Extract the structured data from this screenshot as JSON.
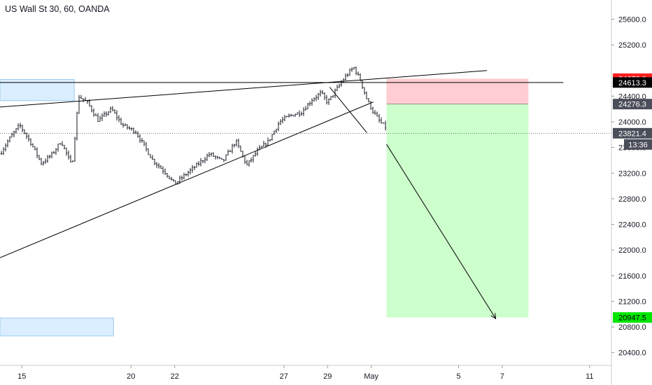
{
  "chart_title": "US Wall St 30, 60, OANDA",
  "colors": {
    "candle": "#131722",
    "zone_fill": "#dbeeff",
    "zone_stroke": "#9ccaf0",
    "stop_fill": "#ffcdd2",
    "target_fill": "#ccffcc",
    "badge_red": "#ff1f1f",
    "badge_black": "#000000",
    "badge_gray": "#4a4e59",
    "badge_green": "#00e600"
  },
  "chart_data": {
    "type": "candlestick",
    "title": "US Wall St 30, 60, OANDA",
    "y_ticks": [
      20400,
      20800,
      21200,
      21600,
      22000,
      22400,
      22800,
      23200,
      23600,
      24000,
      24400,
      25200,
      25600
    ],
    "y_tick_labels": [
      "20400.0",
      "20800.0",
      "21200.0",
      "21600.0",
      "22000.0",
      "22400.0",
      "22800.0",
      "23200.0",
      "23600.0",
      "24000.0",
      "24400.0",
      "25200.0",
      "25600.0"
    ],
    "ylim": [
      20200,
      25900
    ],
    "x_ticks": [
      {
        "label": "15",
        "day": 15
      },
      {
        "label": "20",
        "day": 20
      },
      {
        "label": "22",
        "day": 22
      },
      {
        "label": "27",
        "day": 27
      },
      {
        "label": "29",
        "day": 29
      },
      {
        "label": "May",
        "day": 31
      },
      {
        "label": "5",
        "day": 35
      },
      {
        "label": "7",
        "day": 37
      },
      {
        "label": "11",
        "day": 41
      }
    ],
    "xlim": [
      14.0,
      42.0
    ],
    "price_path": [
      {
        "day": 14.0,
        "price": 23500
      },
      {
        "day": 14.4,
        "price": 23720
      },
      {
        "day": 14.9,
        "price": 23950
      },
      {
        "day": 15.4,
        "price": 23680
      },
      {
        "day": 15.9,
        "price": 23350
      },
      {
        "day": 16.4,
        "price": 23500
      },
      {
        "day": 16.8,
        "price": 23700
      },
      {
        "day": 17.3,
        "price": 23300
      },
      {
        "day": 17.6,
        "price": 24400
      },
      {
        "day": 18.0,
        "price": 24300
      },
      {
        "day": 18.5,
        "price": 24020
      },
      {
        "day": 19.1,
        "price": 24200
      },
      {
        "day": 19.6,
        "price": 23950
      },
      {
        "day": 20.2,
        "price": 23850
      },
      {
        "day": 21.0,
        "price": 23400
      },
      {
        "day": 21.6,
        "price": 23200
      },
      {
        "day": 22.0,
        "price": 23030
      },
      {
        "day": 22.4,
        "price": 23150
      },
      {
        "day": 23.0,
        "price": 23320
      },
      {
        "day": 23.6,
        "price": 23500
      },
      {
        "day": 24.2,
        "price": 23380
      },
      {
        "day": 24.8,
        "price": 23700
      },
      {
        "day": 25.3,
        "price": 23320
      },
      {
        "day": 25.8,
        "price": 23550
      },
      {
        "day": 26.3,
        "price": 23700
      },
      {
        "day": 26.8,
        "price": 24000
      },
      {
        "day": 27.3,
        "price": 24100
      },
      {
        "day": 27.8,
        "price": 24150
      },
      {
        "day": 28.3,
        "price": 24350
      },
      {
        "day": 28.7,
        "price": 24450
      },
      {
        "day": 29.0,
        "price": 24300
      },
      {
        "day": 29.4,
        "price": 24500
      },
      {
        "day": 29.8,
        "price": 24700
      },
      {
        "day": 30.2,
        "price": 24850
      },
      {
        "day": 30.5,
        "price": 24650
      },
      {
        "day": 30.8,
        "price": 24350
      },
      {
        "day": 31.1,
        "price": 24150
      },
      {
        "day": 31.4,
        "price": 24000
      },
      {
        "day": 31.7,
        "price": 23900
      }
    ],
    "zones": [
      {
        "name": "resistance-zone",
        "day_start": 14.0,
        "day_end": 17.4,
        "price_low": 24330,
        "price_high": 24660
      },
      {
        "name": "lower-zone",
        "day_start": 14.0,
        "day_end": 19.2,
        "price_low": 20660,
        "price_high": 20940
      }
    ],
    "trend_lines": [
      {
        "name": "upper-trend-line",
        "points": [
          [
            14.0,
            24230
          ],
          [
            36.3,
            24800
          ]
        ]
      },
      {
        "name": "rising-support-line",
        "points": [
          [
            14.0,
            21880
          ],
          [
            31.1,
            24310
          ]
        ]
      },
      {
        "name": "horizontal-resistance-line",
        "points": [
          [
            14.0,
            24613.3
          ],
          [
            39.8,
            24613.3
          ]
        ]
      },
      {
        "name": "drop-line",
        "points": [
          [
            29.1,
            24540
          ],
          [
            30.8,
            23830
          ]
        ]
      }
    ],
    "projection_arrow": {
      "points": [
        [
          31.7,
          23650
        ],
        [
          36.7,
          20930
        ]
      ]
    },
    "position": {
      "type": "short",
      "day_start": 31.7,
      "day_end": 38.2,
      "stop": 24673.0,
      "entry": 24276.3,
      "target": 20947.5
    },
    "price_labels": [
      {
        "name": "stop-price-badge",
        "value": 24673.0,
        "text": "24673.0",
        "style": "red"
      },
      {
        "name": "resistance-price-badge",
        "value": 24613.3,
        "text": "24613.3",
        "style": "black"
      },
      {
        "name": "entry-price-badge",
        "value": 24276.3,
        "text": "24276.3",
        "style": "gray"
      },
      {
        "name": "last-price-badge",
        "value": 23821.4,
        "text": "23821.4",
        "style": "gray"
      },
      {
        "name": "target-price-badge",
        "value": 20947.5,
        "text": "20947.5",
        "style": "green"
      }
    ],
    "countdown_label": "13:36",
    "last_price": 23821.4
  }
}
